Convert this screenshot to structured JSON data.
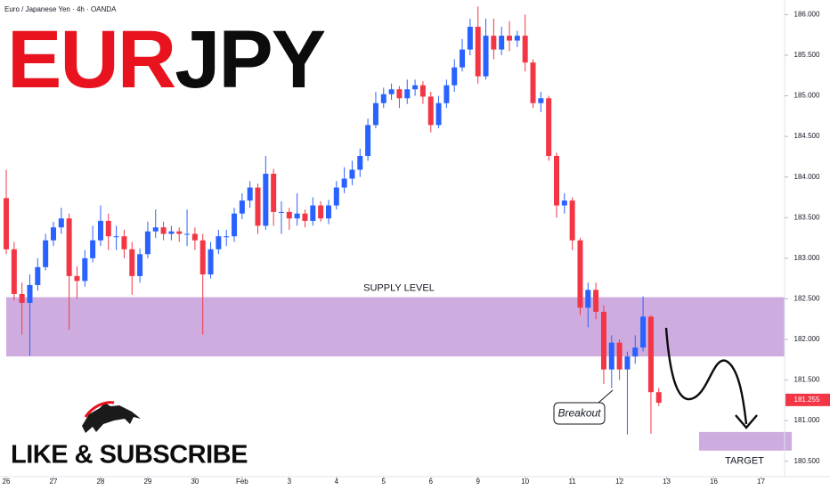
{
  "chart_data": {
    "type": "candlestick",
    "symbol_info": "Euro / Japanese Yen · 4h · OANDA",
    "title_red": "EUR",
    "title_black": "JPY",
    "up_color": "#2962ff",
    "down_color": "#f23645",
    "open": [
      183.74,
      183.11,
      182.56,
      182.45,
      182.67,
      182.89,
      183.22,
      183.38,
      183.49,
      182.78,
      182.72,
      183.0,
      183.22,
      183.46,
      183.27,
      183.27,
      183.11,
      182.78,
      183.05,
      183.33,
      183.38,
      183.3,
      183.33,
      183.3,
      183.3,
      183.22,
      182.8,
      183.11,
      183.27,
      183.27,
      183.55,
      183.71,
      183.87,
      183.4,
      184.04,
      183.57,
      183.57,
      183.49,
      183.55,
      183.46,
      183.65,
      183.49,
      183.65,
      183.87,
      183.98,
      184.09,
      184.26,
      184.64,
      184.91,
      185.02,
      185.08,
      184.97,
      185.08,
      185.13,
      184.99,
      184.64,
      184.91,
      185.13,
      185.35,
      185.57,
      185.85,
      185.24,
      185.74,
      185.57,
      185.74,
      185.68,
      185.74,
      185.41,
      184.91,
      184.97,
      184.26,
      183.65,
      183.71,
      183.22,
      182.39,
      182.61,
      182.34,
      181.63,
      181.96,
      181.63,
      181.79,
      181.9,
      182.28,
      181.35
    ],
    "high": [
      184.09,
      183.2,
      182.7,
      182.8,
      183.0,
      183.3,
      183.45,
      183.62,
      183.55,
      182.9,
      183.1,
      183.4,
      183.65,
      183.55,
      183.4,
      183.35,
      183.2,
      183.12,
      183.45,
      183.6,
      183.45,
      183.4,
      183.38,
      183.6,
      183.38,
      183.3,
      183.2,
      183.35,
      183.35,
      183.62,
      183.8,
      183.95,
      183.92,
      184.26,
      184.1,
      183.7,
      183.62,
      183.8,
      183.6,
      183.75,
      183.7,
      183.72,
      183.95,
      184.12,
      184.2,
      184.35,
      184.72,
      185.05,
      185.1,
      185.15,
      185.12,
      185.2,
      185.2,
      185.18,
      185.05,
      185.0,
      185.2,
      185.45,
      185.7,
      185.95,
      186.1,
      185.95,
      185.95,
      185.85,
      185.92,
      185.8,
      186.0,
      185.45,
      185.05,
      185.0,
      184.3,
      183.8,
      183.75,
      183.25,
      182.7,
      182.7,
      182.42,
      182.05,
      182.0,
      181.85,
      182.05,
      182.53,
      182.3,
      181.4
    ],
    "low": [
      183.05,
      182.48,
      182.06,
      181.8,
      182.6,
      182.85,
      183.15,
      183.3,
      182.12,
      182.5,
      182.65,
      182.95,
      183.15,
      183.1,
      183.1,
      183.0,
      182.55,
      182.7,
      183.0,
      183.25,
      183.22,
      183.22,
      183.2,
      183.15,
      183.1,
      182.06,
      182.75,
      183.05,
      183.15,
      183.2,
      183.48,
      183.62,
      183.3,
      183.35,
      183.4,
      183.3,
      183.35,
      183.4,
      183.38,
      183.4,
      183.45,
      183.42,
      183.6,
      183.8,
      183.9,
      184.0,
      184.2,
      184.6,
      184.85,
      184.95,
      184.85,
      184.9,
      185.0,
      184.9,
      184.55,
      184.6,
      184.85,
      185.05,
      185.3,
      185.5,
      185.15,
      185.2,
      185.45,
      185.5,
      185.55,
      185.6,
      185.3,
      184.85,
      184.8,
      184.2,
      183.5,
      183.55,
      183.1,
      182.3,
      182.15,
      182.25,
      181.45,
      181.4,
      181.5,
      180.83,
      181.7,
      181.85,
      180.84,
      181.18
    ],
    "close": [
      183.11,
      182.56,
      182.45,
      182.67,
      182.89,
      183.22,
      183.38,
      183.49,
      182.78,
      182.72,
      183.0,
      183.22,
      183.46,
      183.27,
      183.27,
      183.11,
      182.78,
      183.05,
      183.33,
      183.38,
      183.3,
      183.33,
      183.3,
      183.3,
      183.22,
      182.8,
      183.11,
      183.27,
      183.27,
      183.55,
      183.71,
      183.87,
      183.4,
      184.04,
      183.57,
      183.57,
      183.49,
      183.55,
      183.46,
      183.65,
      183.49,
      183.65,
      183.87,
      183.98,
      184.09,
      184.26,
      184.64,
      184.91,
      185.02,
      185.08,
      184.97,
      185.08,
      185.13,
      184.99,
      184.64,
      184.91,
      185.13,
      185.35,
      185.57,
      185.85,
      185.24,
      185.74,
      185.57,
      185.74,
      185.68,
      185.74,
      185.41,
      184.91,
      184.97,
      184.26,
      183.65,
      183.71,
      183.22,
      182.39,
      182.61,
      182.34,
      181.63,
      181.96,
      181.63,
      181.79,
      181.9,
      182.28,
      181.35,
      181.22
    ],
    "xlim": [
      -0.5,
      99
    ],
    "xticks": [
      {
        "value": 0,
        "label": "26"
      },
      {
        "value": 6,
        "label": "27"
      },
      {
        "value": 12,
        "label": "28"
      },
      {
        "value": 18,
        "label": "29"
      },
      {
        "value": 24,
        "label": "30"
      },
      {
        "value": 30,
        "label": "Feb"
      },
      {
        "value": 36,
        "label": "3"
      },
      {
        "value": 42,
        "label": "4"
      },
      {
        "value": 48,
        "label": "5"
      },
      {
        "value": 54,
        "label": "6"
      },
      {
        "value": 60,
        "label": "9"
      },
      {
        "value": 66,
        "label": "10"
      },
      {
        "value": 72,
        "label": "11"
      },
      {
        "value": 78,
        "label": "12"
      },
      {
        "value": 84,
        "label": "13"
      },
      {
        "value": 90,
        "label": "16"
      },
      {
        "value": 96,
        "label": "17"
      }
    ],
    "ylim": [
      180.31,
      186.18
    ],
    "yticks": [
      {
        "value": 180.5,
        "label": "180.500"
      },
      {
        "value": 181,
        "label": "181.000"
      },
      {
        "value": 181.5,
        "label": "181.500"
      },
      {
        "value": 182,
        "label": "182.000"
      },
      {
        "value": 182.5,
        "label": "182.500"
      },
      {
        "value": 183,
        "label": "183.000"
      },
      {
        "value": 183.5,
        "label": "183.500"
      },
      {
        "value": 184,
        "label": "184.000"
      },
      {
        "value": 184.5,
        "label": "184.500"
      },
      {
        "value": 185,
        "label": "185.000"
      },
      {
        "value": 185.5,
        "label": "185.500"
      },
      {
        "value": 186,
        "label": "186.000"
      }
    ],
    "last_price": 181.255,
    "supply_zone": {
      "label": "SUPPLY LEVEL",
      "top": 182.52,
      "bottom": 181.79,
      "color": "#cfacdf"
    },
    "target_zone": {
      "label": "TARGET",
      "top": 180.86,
      "bottom": 180.63,
      "color": "#cfacdf"
    },
    "annotation": "Breakout",
    "call_to_action": "LIKE & SUBSCRIBE"
  }
}
